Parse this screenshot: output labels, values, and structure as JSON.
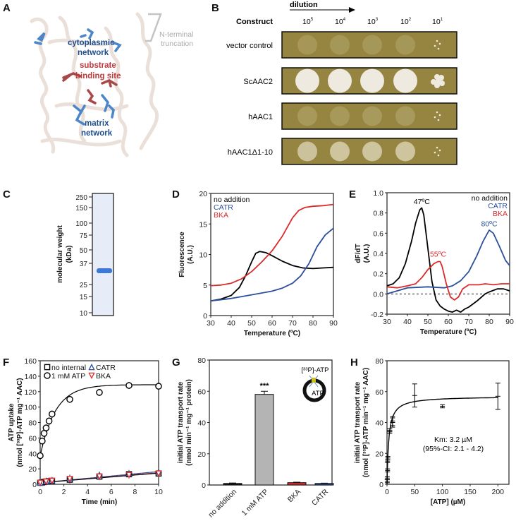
{
  "panels": {
    "A": "A",
    "B": "B",
    "C": "C",
    "D": "D",
    "E": "E",
    "F": "F",
    "G": "G",
    "H": "H"
  },
  "panel_a": {
    "cytoplasmic": [
      "cytoplasmic",
      "network"
    ],
    "substrate": [
      "substrate",
      "binding site"
    ],
    "matrix": [
      "matrix",
      "network"
    ],
    "nterm": [
      "N-terminal",
      "truncation"
    ],
    "colors": {
      "blue": "#1f4e8c",
      "red": "#c0393b",
      "gray": "#b0b0b0"
    }
  },
  "panel_b": {
    "dilution_label": "dilution",
    "construct_label": "Construct",
    "dilutions": [
      "10",
      "10",
      "10",
      "10",
      "10"
    ],
    "exponents": [
      "5",
      "4",
      "3",
      "2",
      "1"
    ],
    "rows": [
      {
        "label": "vector control",
        "growth": [
          0.15,
          0.1,
          0.1,
          0.1,
          0.05
        ]
      },
      {
        "label": "ScAAC2",
        "growth": [
          1,
          1,
          1,
          1,
          0.6
        ]
      },
      {
        "label": "hAAC1",
        "growth": [
          0.25,
          0.25,
          0.35,
          0.35,
          0.1
        ]
      },
      {
        "label": "hAAC1Δ1-10",
        "growth": [
          0.6,
          0.7,
          0.7,
          0.7,
          0.1
        ]
      }
    ]
  },
  "chart_data": [
    {
      "id": "C",
      "type": "gel",
      "ylabel": [
        "molecular weight",
        "(kDa)"
      ],
      "markers": [
        "250",
        "150",
        "100",
        "75",
        "50",
        "37",
        "25",
        "15",
        "10"
      ],
      "band_kDa": 32
    },
    {
      "id": "D",
      "type": "line",
      "xlabel": "Temperature (ºC)",
      "ylabel": [
        "Fluorescence",
        "(A.U.)"
      ],
      "xlim": [
        30,
        90
      ],
      "ylim": [
        0,
        20
      ],
      "xticks": [
        "30",
        "40",
        "50",
        "60",
        "70",
        "80",
        "90"
      ],
      "yticks": [
        "0",
        "5",
        "10",
        "15",
        "20"
      ],
      "series": [
        {
          "name": "no addition",
          "color": "#000000",
          "x": [
            30,
            35,
            40,
            44,
            47,
            50,
            52,
            54,
            57,
            60,
            65,
            70,
            75,
            80,
            85,
            90
          ],
          "y": [
            2.4,
            2.7,
            3.3,
            4.6,
            6.5,
            8.8,
            10.2,
            10.5,
            10.3,
            9.8,
            8.9,
            8.2,
            7.8,
            7.7,
            7.8,
            7.9
          ]
        },
        {
          "name": "CATR",
          "color": "#2b4f9b",
          "x": [
            30,
            40,
            50,
            60,
            65,
            70,
            74,
            78,
            82,
            86,
            90
          ],
          "y": [
            2.4,
            2.8,
            3.4,
            4,
            4.5,
            5.3,
            6.5,
            8.5,
            11.3,
            13.2,
            14.3
          ]
        },
        {
          "name": "BKA",
          "color": "#d92b2b",
          "x": [
            30,
            35,
            40,
            45,
            50,
            55,
            60,
            65,
            70,
            73,
            76,
            80,
            85,
            90
          ],
          "y": [
            4.9,
            5,
            5.3,
            6,
            7.2,
            8.8,
            10.6,
            13,
            16,
            17.2,
            17.7,
            17.9,
            18,
            18.2
          ]
        }
      ]
    },
    {
      "id": "E",
      "type": "line",
      "xlabel": "Temperature (ºC)",
      "ylabel": [
        "dF/dT",
        "(A.U.)"
      ],
      "xlim": [
        30,
        90
      ],
      "ylim": [
        -0.2,
        1.0
      ],
      "xticks": [
        "30",
        "40",
        "50",
        "60",
        "70",
        "80",
        "90"
      ],
      "yticks": [
        "-0.2",
        "0.0",
        "0.2",
        "0.4",
        "0.6",
        "0.8",
        "1.0"
      ],
      "annotations": [
        {
          "text": "47ºC",
          "x": 47,
          "y": 0.89,
          "color": "#000000"
        },
        {
          "text": "55ºC",
          "x": 55,
          "y": 0.37,
          "color": "#d92b2b"
        },
        {
          "text": "80ºC",
          "x": 80,
          "y": 0.67,
          "color": "#2b4f9b"
        }
      ],
      "series": [
        {
          "name": "no addition",
          "color": "#000000",
          "x": [
            30,
            33,
            36,
            39,
            42,
            44,
            46,
            47,
            48,
            50,
            52,
            54,
            56,
            58,
            60,
            62,
            64,
            66,
            68,
            70,
            74,
            78,
            80,
            84,
            87,
            90
          ],
          "y": [
            0.08,
            0.1,
            0.16,
            0.3,
            0.52,
            0.7,
            0.83,
            0.85,
            0.78,
            0.45,
            0.12,
            -0.06,
            -0.12,
            -0.15,
            -0.17,
            -0.18,
            -0.16,
            -0.18,
            -0.15,
            -0.13,
            -0.07,
            0,
            0.02,
            0.05,
            0.05,
            0.03
          ]
        },
        {
          "name": "CATR",
          "color": "#2b4f9b",
          "x": [
            30,
            35,
            40,
            50,
            58,
            62,
            66,
            70,
            74,
            77,
            80,
            82,
            85,
            88,
            90
          ],
          "y": [
            0,
            0.03,
            0.06,
            0.07,
            0.06,
            0.08,
            0.13,
            0.22,
            0.38,
            0.52,
            0.63,
            0.6,
            0.47,
            0.33,
            0.28
          ]
        },
        {
          "name": "BKA",
          "color": "#d92b2b",
          "x": [
            30,
            35,
            40,
            44,
            47,
            50,
            53,
            55,
            56,
            57,
            59,
            61,
            63,
            65,
            67,
            70,
            75,
            78,
            82,
            86,
            90
          ],
          "y": [
            0.07,
            0.06,
            0.08,
            0.1,
            0.16,
            0.24,
            0.3,
            0.32,
            0.32,
            0.27,
            0.1,
            -0.03,
            -0.06,
            -0.03,
            0.05,
            0.09,
            0.09,
            0.1,
            0.09,
            0.1,
            0.1
          ]
        }
      ],
      "zero_line": true
    },
    {
      "id": "F",
      "type": "scatter",
      "xlabel": "Time (min)",
      "ylabel": [
        "ATP uptake",
        "(nmol [³³P]-ATP mg⁻¹ AAC)"
      ],
      "xlim": [
        0,
        10
      ],
      "ylim": [
        0,
        160
      ],
      "xticks": [
        "0",
        "2",
        "4",
        "6",
        "8",
        "10"
      ],
      "yticks": [
        "0",
        "20",
        "40",
        "60",
        "80",
        "100",
        "120",
        "140",
        "160"
      ],
      "series": [
        {
          "name": "no internal",
          "marker": "square",
          "color": "#000000",
          "x": [
            0,
            0.17,
            0.33,
            0.5,
            0.75,
            1,
            2.5,
            5,
            7.5,
            10
          ],
          "y": [
            2,
            2.5,
            3,
            3.5,
            4,
            4.5,
            6,
            10,
            13,
            14
          ]
        },
        {
          "name": "1 mM ATP",
          "marker": "circle",
          "color": "#000000",
          "x": [
            0,
            0.17,
            0.33,
            0.5,
            0.75,
            1,
            2.5,
            5,
            7.5,
            10
          ],
          "y": [
            37,
            56,
            66,
            73,
            82,
            91,
            110,
            119,
            128,
            127
          ]
        },
        {
          "name": "CATR",
          "marker": "triangle-up",
          "color": "#2b4f9b",
          "x": [
            0,
            0.5,
            1,
            2.5,
            5,
            7.5,
            10
          ],
          "y": [
            2,
            4,
            5,
            8,
            12,
            14,
            16
          ]
        },
        {
          "name": "BKA",
          "marker": "triangle-down",
          "color": "#d92b2b",
          "x": [
            0,
            0.5,
            1,
            2.5,
            5,
            7.5,
            10
          ],
          "y": [
            2,
            3.5,
            4.5,
            7,
            10,
            12,
            14
          ]
        }
      ]
    },
    {
      "id": "G",
      "type": "bar",
      "ylabel": [
        "initial ATP transport rate",
        "(nmol min⁻¹ mg⁻¹ protein)"
      ],
      "ylim": [
        0,
        80
      ],
      "yticks": [
        "0",
        "20",
        "40",
        "60",
        "80"
      ],
      "categories": [
        "no addition",
        "1 mM ATP",
        "BKA",
        "CATR"
      ],
      "values": [
        1,
        58,
        1.5,
        1
      ],
      "errors": [
        0.3,
        2,
        0.3,
        0.2
      ],
      "colors": [
        "#111111",
        "#b4b4b4",
        "#d92b2b",
        "#2b4f9b"
      ],
      "significance": "***",
      "inset": {
        "outside": "[³³P]-ATP",
        "inside": "ATP"
      }
    },
    {
      "id": "H",
      "type": "scatter",
      "xlabel": "[ATP] (µM)",
      "ylabel": [
        "initial ATP transport rate",
        "(nmol [³³P]-ATP min⁻¹ mg⁻¹ AAC)"
      ],
      "xlim": [
        0,
        200
      ],
      "ylim": [
        0,
        80
      ],
      "xticks": [
        "0",
        "50",
        "100",
        "150",
        "200"
      ],
      "yticks": [
        "0",
        "20",
        "40",
        "60",
        "80"
      ],
      "x": [
        0.5,
        0.5,
        1,
        1,
        1.5,
        5,
        5,
        10,
        10,
        50,
        100,
        200
      ],
      "y": [
        2,
        4,
        9,
        15,
        17,
        34,
        35,
        40,
        41,
        57.5,
        50.5,
        57
      ],
      "err": [
        1,
        1,
        1,
        1,
        1,
        1,
        1,
        3,
        3,
        7.5,
        1,
        8.5
      ],
      "fit": {
        "vmax": 57,
        "km": 3.2
      },
      "annotation": [
        "Km: 3.2 µM",
        "(95%-CI: 2.1 - 4.2)"
      ]
    }
  ]
}
